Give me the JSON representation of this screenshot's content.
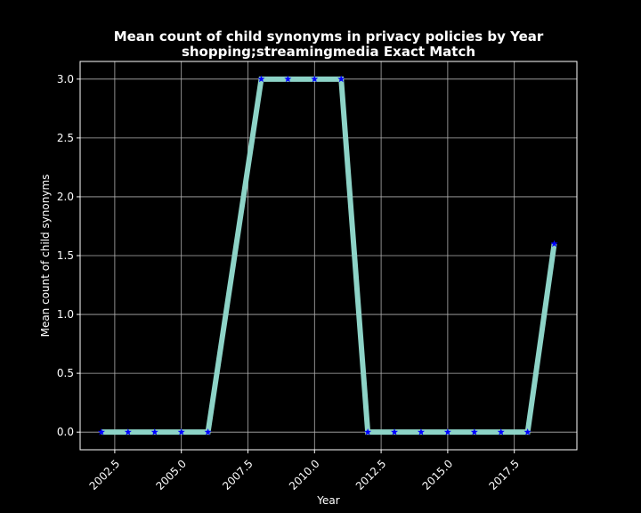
{
  "chart_data": {
    "type": "line",
    "title": "Mean count of child synonyms in privacy policies by Year",
    "subtitle": "shopping;streamingmedia Exact Match",
    "xlabel": "Year",
    "ylabel": "Mean count of child synonyms",
    "xlim": [
      2001.2,
      2019.85
    ],
    "ylim": [
      -0.15,
      3.15
    ],
    "xticks": [
      2002.5,
      2005.0,
      2007.5,
      2010.0,
      2012.5,
      2015.0,
      2017.5
    ],
    "xtick_labels": [
      "2002.5",
      "2005.0",
      "2007.5",
      "2010.0",
      "2012.5",
      "2015.0",
      "2017.5"
    ],
    "yticks": [
      0.0,
      0.5,
      1.0,
      1.5,
      2.0,
      2.5,
      3.0
    ],
    "ytick_labels": [
      "0.0",
      "0.5",
      "1.0",
      "1.5",
      "2.0",
      "2.5",
      "3.0"
    ],
    "grid": true,
    "line_color": "#8dd3c7",
    "marker_color": "#0000ff",
    "marker": "star",
    "series": [
      {
        "x": [
          2002,
          2003,
          2004,
          2005,
          2006,
          2008,
          2009,
          2010,
          2011,
          2012,
          2013,
          2014,
          2015,
          2016,
          2017,
          2018,
          2019
        ],
        "values": [
          0,
          0,
          0,
          0,
          0,
          3,
          3,
          3,
          3,
          0,
          0,
          0,
          0,
          0,
          0,
          0,
          1.6
        ]
      }
    ]
  }
}
